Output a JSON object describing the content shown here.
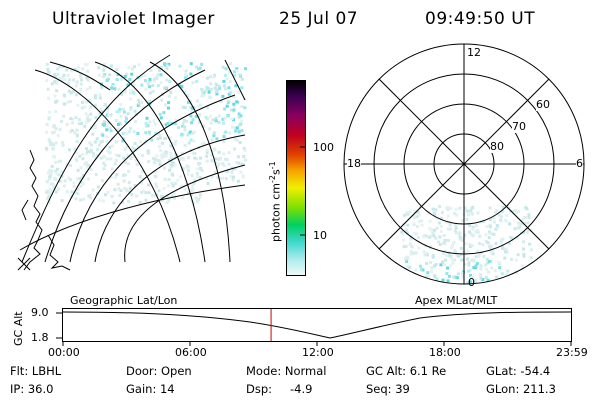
{
  "header": {
    "title": "Ultraviolet Imager",
    "date": "25 Jul 07",
    "time": "09:49:50 UT"
  },
  "left_map": {
    "caption": "Geographic Lat/Lon"
  },
  "colorbar": {
    "unit_label": "photon cm",
    "unit_exp1": "-2",
    "unit_s": "s",
    "unit_exp2": "-1",
    "tick_100": "100",
    "tick_10": "10",
    "colors": [
      "#000000",
      "#2a0040",
      "#6a0060",
      "#9a0040",
      "#c00020",
      "#e02000",
      "#f06000",
      "#f8a000",
      "#f8e000",
      "#c0f000",
      "#60e000",
      "#00d060",
      "#00d0c0",
      "#80e8e8",
      "#c8f0f0",
      "#f0f8f8"
    ]
  },
  "right_map": {
    "caption": "Apex MLat/MLT",
    "mlt_top": "12",
    "mlt_left": "18",
    "mlt_right": "6",
    "mlt_bottom": "0",
    "lat_60": "60",
    "lat_70": "70",
    "lat_80": "80"
  },
  "timeline": {
    "ylabel": "GC Alt",
    "y_top": "9.0",
    "y_bottom": "1.8",
    "x_ticks": [
      "00:00",
      "06:00",
      "12:00",
      "18:00",
      "23:59"
    ],
    "current_time_fraction": 0.4096,
    "marker_color": "#d00000"
  },
  "info": {
    "flt": "Flt: LBHL",
    "door": "Door: Open",
    "mode": "Mode: Normal",
    "gc_alt": "GC Alt: 6.1 Re",
    "glat": "GLat: -54.4",
    "ip": "IP: 36.0",
    "gain": "Gain: 14",
    "dsp": "Dsp:",
    "dsp_value": "-4.9",
    "seq": "Seq: 39",
    "glon": "GLon: 211.3"
  }
}
